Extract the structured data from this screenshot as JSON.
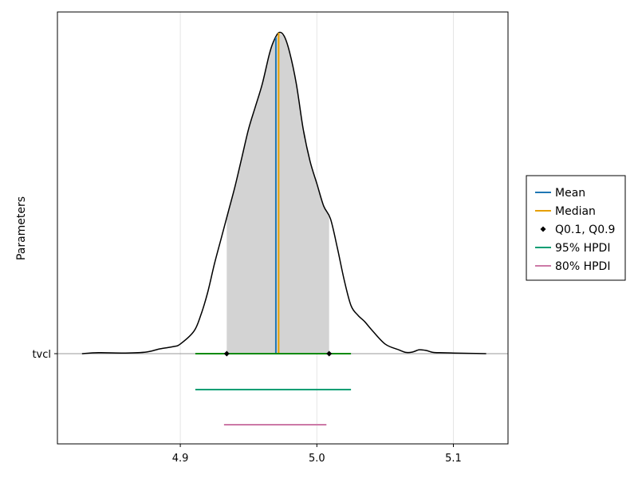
{
  "chart_data": {
    "type": "density",
    "title": "",
    "xlabel": "",
    "ylabel": "Parameters",
    "parameter": "tvcl",
    "xlim": [
      4.81,
      5.14
    ],
    "x_ticks": [
      4.9,
      5.0,
      5.1
    ],
    "x_tick_labels": [
      "4.9",
      "5.0",
      "5.1"
    ],
    "y_tick_labels": [
      "tvcl"
    ],
    "grid": true,
    "legend_position": "right",
    "legend": [
      {
        "label": "Mean",
        "color": "#1f77b4",
        "kind": "line"
      },
      {
        "label": "Median",
        "color": "#e69f00",
        "kind": "line"
      },
      {
        "label": "Q0.1, Q0.9",
        "color": "#000000",
        "kind": "marker"
      },
      {
        "label": "95% HPDI",
        "color": "#009e73",
        "kind": "line"
      },
      {
        "label": "80% HPDI",
        "color": "#cc79a7",
        "kind": "line"
      }
    ],
    "stats": {
      "mean": 4.97,
      "median": 4.972,
      "q10": 4.934,
      "q90": 5.009,
      "hpdi95": [
        4.911,
        5.025
      ],
      "hpdi80": [
        4.932,
        5.007
      ]
    },
    "density": {
      "x": [
        4.828,
        4.84,
        4.86,
        4.875,
        4.885,
        4.895,
        4.9,
        4.91,
        4.915,
        4.92,
        4.925,
        4.93,
        4.935,
        4.94,
        4.945,
        4.95,
        4.955,
        4.96,
        4.965,
        4.968,
        4.972,
        4.976,
        4.98,
        4.985,
        4.99,
        4.995,
        5.0,
        5.005,
        5.01,
        5.015,
        5.02,
        5.025,
        5.03,
        5.035,
        5.04,
        5.05,
        5.06,
        5.065,
        5.07,
        5.075,
        5.08,
        5.085,
        5.09,
        5.1,
        5.112,
        5.124
      ],
      "y": [
        0.0,
        0.003,
        0.002,
        0.005,
        0.015,
        0.022,
        0.03,
        0.07,
        0.12,
        0.19,
        0.28,
        0.36,
        0.44,
        0.52,
        0.61,
        0.7,
        0.77,
        0.84,
        0.93,
        0.97,
        1.0,
        0.99,
        0.94,
        0.84,
        0.7,
        0.6,
        0.53,
        0.46,
        0.42,
        0.33,
        0.23,
        0.15,
        0.12,
        0.1,
        0.075,
        0.03,
        0.012,
        0.004,
        0.005,
        0.012,
        0.01,
        0.004,
        0.003,
        0.002,
        0.001,
        0.0
      ]
    }
  }
}
